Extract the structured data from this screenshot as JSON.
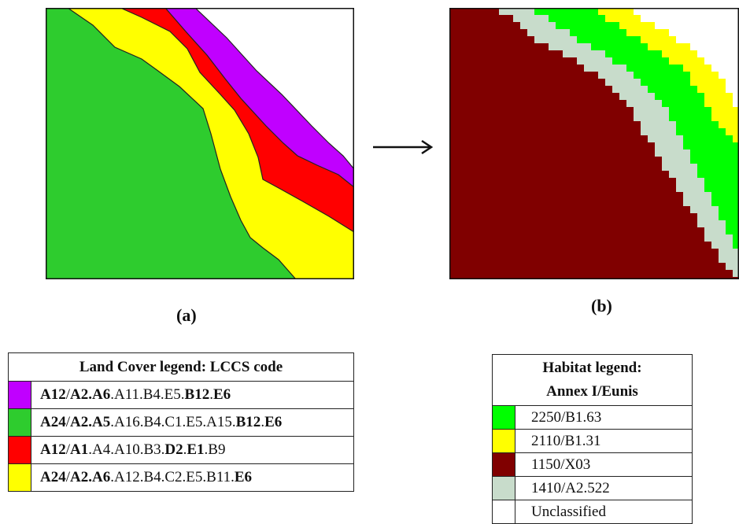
{
  "panels": {
    "a_label": "(a)",
    "b_label": "(b)"
  },
  "land_cover_legend": {
    "title": "Land Cover legend: LCCS code",
    "rows": [
      {
        "color": "#c000ff",
        "parts": [
          {
            "t": "A12",
            "bold": true
          },
          {
            "t": "/",
            "bold": false
          },
          {
            "t": "A2.A6",
            "bold": true
          },
          {
            "t": ".A11.B4.E5.",
            "bold": false
          },
          {
            "t": "B12",
            "bold": true
          },
          {
            "t": ".",
            "bold": false
          },
          {
            "t": "E6",
            "bold": true
          }
        ]
      },
      {
        "color": "#2ecc2e",
        "parts": [
          {
            "t": "A24",
            "bold": true
          },
          {
            "t": "/",
            "bold": false
          },
          {
            "t": "A2.A5",
            "bold": true
          },
          {
            "t": ".A16.B4.C1.E5.A15.",
            "bold": false
          },
          {
            "t": "B12",
            "bold": true
          },
          {
            "t": ".",
            "bold": false
          },
          {
            "t": "E6",
            "bold": true
          }
        ]
      },
      {
        "color": "#ff0000",
        "parts": [
          {
            "t": "A12",
            "bold": true
          },
          {
            "t": "/",
            "bold": false
          },
          {
            "t": "A1",
            "bold": true
          },
          {
            "t": ".A4.A10.B3.",
            "bold": false
          },
          {
            "t": "D2",
            "bold": true
          },
          {
            "t": ".",
            "bold": false
          },
          {
            "t": "E1",
            "bold": true
          },
          {
            "t": ".B9",
            "bold": false
          }
        ]
      },
      {
        "color": "#ffff00",
        "parts": [
          {
            "t": "A24",
            "bold": true
          },
          {
            "t": "/",
            "bold": false
          },
          {
            "t": "A2.A6",
            "bold": true
          },
          {
            "t": ".A12.B4.C2.E5.B11.",
            "bold": false
          },
          {
            "t": "E6",
            "bold": true
          }
        ]
      }
    ]
  },
  "habitat_legend": {
    "title_line1": "Habitat legend:",
    "title_line2": "Annex I/Eunis",
    "rows": [
      {
        "color": "#00ff00",
        "code": "2250/B1.63"
      },
      {
        "color": "#ffff00",
        "code": "2110/B1.31"
      },
      {
        "color": "#800000",
        "code": "1150/X03"
      },
      {
        "color": "#c8dccb",
        "code": "1410/A2.522"
      },
      {
        "color": "#ffffff",
        "code": "Unclassified"
      }
    ]
  },
  "colors": {
    "lc_green": "#2ecc2e",
    "lc_yellow": "#ffff00",
    "lc_red": "#ff0000",
    "lc_purple": "#c000ff",
    "hab_maroon": "#800000",
    "hab_grey": "#c8dccb",
    "hab_green": "#00ff00",
    "hab_yellow": "#ffff00"
  }
}
